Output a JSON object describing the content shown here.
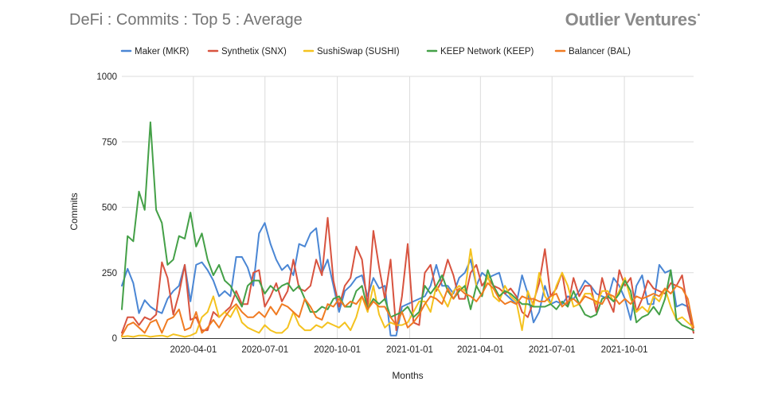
{
  "header": {
    "title": "DeFi : Commits : Top 5 : Average",
    "brand": "Outlier Ventures",
    "brand_mark": "•"
  },
  "chart_data": {
    "type": "line",
    "title": "DeFi : Commits : Top 5 : Average",
    "xlabel": "Months",
    "ylabel": "Commits",
    "ylim": [
      0,
      1000
    ],
    "y_ticks": [
      "0",
      "250",
      "500",
      "750",
      "1000"
    ],
    "xlim": [
      "2020-01-01",
      "2021-12-28"
    ],
    "x_ticks": [
      "2020-04-01",
      "2020-07-01",
      "2020-10-01",
      "2021-01-01",
      "2021-04-01",
      "2021-07-01",
      "2021-10-01"
    ],
    "grid": true,
    "legend_position": "top",
    "series": [
      {
        "name": "Maker (MKR)",
        "color": "#4a86d4",
        "values": [
          200,
          265,
          210,
          95,
          145,
          120,
          105,
          95,
          150,
          180,
          200,
          280,
          140,
          280,
          290,
          260,
          220,
          160,
          180,
          160,
          310,
          310,
          270,
          200,
          400,
          440,
          360,
          300,
          260,
          280,
          240,
          360,
          350,
          400,
          420,
          250,
          300,
          200,
          100,
          180,
          200,
          230,
          240,
          160,
          230,
          190,
          200,
          10,
          10,
          120,
          130,
          140,
          150,
          160,
          200,
          280,
          200,
          200,
          170,
          230,
          250,
          300,
          200,
          250,
          230,
          240,
          250,
          170,
          150,
          130,
          240,
          170,
          60,
          100,
          200,
          130,
          140,
          130,
          160,
          150,
          180,
          220,
          200,
          170,
          160,
          150,
          230,
          200,
          150,
          70,
          200,
          240,
          130,
          130,
          280,
          250,
          260,
          120,
          130,
          120,
          20
        ]
      },
      {
        "name": "Synthetix (SNX)",
        "color": "#d8533f",
        "values": [
          20,
          80,
          80,
          50,
          80,
          70,
          90,
          290,
          230,
          90,
          170,
          280,
          70,
          80,
          30,
          30,
          100,
          80,
          100,
          120,
          180,
          130,
          130,
          250,
          260,
          120,
          160,
          210,
          140,
          180,
          300,
          190,
          180,
          200,
          300,
          240,
          460,
          220,
          120,
          200,
          230,
          350,
          300,
          120,
          410,
          270,
          150,
          300,
          30,
          160,
          360,
          60,
          50,
          250,
          280,
          180,
          220,
          300,
          240,
          150,
          150,
          250,
          280,
          200,
          230,
          200,
          190,
          170,
          190,
          160,
          100,
          80,
          140,
          210,
          340,
          160,
          190,
          250,
          120,
          230,
          160,
          200,
          200,
          100,
          230,
          150,
          100,
          260,
          200,
          230,
          100,
          150,
          220,
          190,
          180,
          170,
          210,
          200,
          240,
          110,
          20
        ]
      },
      {
        "name": "SushiSwap (SUSHI)",
        "color": "#f4c21f",
        "values": [
          5,
          8,
          5,
          10,
          10,
          5,
          8,
          10,
          5,
          15,
          10,
          5,
          10,
          20,
          80,
          100,
          160,
          80,
          100,
          80,
          120,
          60,
          40,
          30,
          20,
          50,
          30,
          20,
          20,
          40,
          100,
          50,
          30,
          30,
          50,
          40,
          60,
          50,
          40,
          60,
          30,
          80,
          160,
          100,
          200,
          90,
          40,
          60,
          50,
          50,
          60,
          100,
          140,
          140,
          100,
          200,
          160,
          120,
          180,
          200,
          180,
          340,
          200,
          160,
          240,
          160,
          140,
          200,
          160,
          140,
          30,
          180,
          120,
          250,
          160,
          130,
          200,
          250,
          200,
          120,
          130,
          170,
          170,
          130,
          180,
          180,
          140,
          180,
          230,
          150,
          100,
          120,
          100,
          160,
          140,
          190,
          120,
          70,
          80,
          60,
          40
        ]
      },
      {
        "name": "KEEP Network (KEEP)",
        "color": "#44a047",
        "values": [
          110,
          390,
          370,
          560,
          490,
          825,
          490,
          440,
          280,
          300,
          390,
          380,
          480,
          350,
          400,
          300,
          240,
          280,
          220,
          200,
          160,
          120,
          200,
          220,
          220,
          170,
          200,
          180,
          200,
          210,
          180,
          200,
          150,
          100,
          100,
          120,
          110,
          150,
          160,
          120,
          120,
          180,
          200,
          110,
          150,
          130,
          150,
          80,
          90,
          100,
          120,
          80,
          100,
          200,
          170,
          200,
          240,
          180,
          150,
          180,
          200,
          110,
          200,
          160,
          260,
          200,
          160,
          180,
          170,
          150,
          130,
          130,
          120,
          120,
          120,
          130,
          110,
          140,
          120,
          180,
          130,
          90,
          80,
          90,
          150,
          160,
          140,
          170,
          220,
          180,
          60,
          80,
          90,
          120,
          90,
          150,
          260,
          70,
          50,
          40,
          30
        ]
      },
      {
        "name": "Balancer (BAL)",
        "color": "#f07b22",
        "values": [
          10,
          50,
          60,
          40,
          20,
          60,
          70,
          20,
          70,
          80,
          110,
          30,
          40,
          100,
          20,
          40,
          70,
          40,
          80,
          110,
          130,
          100,
          80,
          80,
          100,
          80,
          120,
          90,
          130,
          120,
          100,
          80,
          150,
          120,
          80,
          70,
          130,
          120,
          150,
          120,
          140,
          130,
          160,
          110,
          140,
          120,
          120,
          80,
          50,
          100,
          40,
          60,
          90,
          130,
          160,
          150,
          130,
          190,
          150,
          190,
          170,
          160,
          140,
          170,
          210,
          190,
          150,
          130,
          140,
          130,
          160,
          150,
          150,
          140,
          140,
          160,
          170,
          120,
          140,
          150,
          130,
          160,
          150,
          140,
          130,
          170,
          160,
          130,
          150,
          130,
          160,
          150,
          160,
          170,
          160,
          190,
          170,
          200,
          190,
          150,
          40
        ]
      }
    ]
  }
}
